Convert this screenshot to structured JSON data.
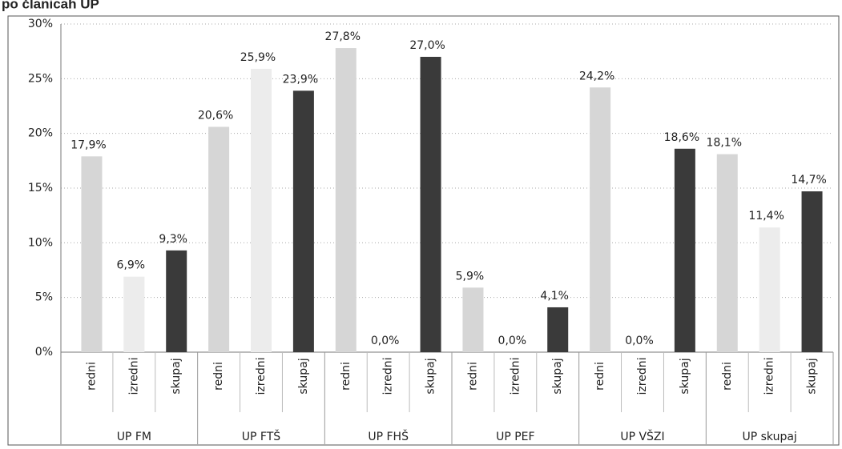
{
  "chart_data": {
    "type": "bar",
    "title": "po članicah UP",
    "categories": [
      "UP FM",
      "UP FTŠ",
      "UP FHŠ",
      "UP PEF",
      "UP VŠZI",
      "UP skupaj"
    ],
    "series": [
      {
        "name": "redni",
        "color": "#d6d6d6",
        "values": [
          17.9,
          20.6,
          27.8,
          5.9,
          24.2,
          18.1
        ],
        "value_labels": [
          "17,9%",
          "20,6%",
          "27,8%",
          "5,9%",
          "24,2%",
          "18,1%"
        ]
      },
      {
        "name": "izredni",
        "color": "#ececec",
        "values": [
          6.9,
          25.9,
          0.0,
          0.0,
          0.0,
          11.4
        ],
        "value_labels": [
          "6,9%",
          "25,9%",
          "0,0%",
          "0,0%",
          "0,0%",
          "11,4%"
        ]
      },
      {
        "name": "skupaj",
        "color": "#3a3a3a",
        "values": [
          9.3,
          23.9,
          27.0,
          4.1,
          18.6,
          14.7
        ],
        "value_labels": [
          "9,3%",
          "23,9%",
          "27,0%",
          "4,1%",
          "18,6%",
          "14,7%"
        ]
      }
    ],
    "ylim": [
      0,
      30
    ],
    "yticks": [
      {
        "value": 0,
        "label": "0%"
      },
      {
        "value": 5,
        "label": "5%"
      },
      {
        "value": 10,
        "label": "10%"
      },
      {
        "value": 15,
        "label": "15%"
      },
      {
        "value": 20,
        "label": "20%"
      },
      {
        "value": 25,
        "label": "25%"
      },
      {
        "value": 30,
        "label": "30%"
      }
    ],
    "grid": true
  }
}
